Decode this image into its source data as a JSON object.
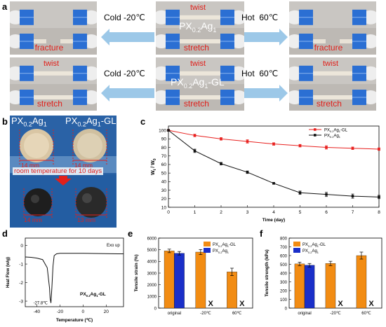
{
  "panels": {
    "a": {
      "letter": "a",
      "row1": {
        "left": {
          "top": "",
          "bottom": "fracture"
        },
        "center": {
          "top": "twist",
          "bottom": "stretch",
          "material": "PX",
          "material_sub": "0.2",
          "material_suffix": "Ag",
          "material_sub2": "1",
          "material_tail": ""
        },
        "right": {
          "top": "",
          "bottom": "fracture"
        },
        "arrow_left": "Cold -20℃",
        "arrow_right": "Hot  60℃"
      },
      "row2": {
        "left": {
          "top": "twist",
          "bottom": "stretch"
        },
        "center": {
          "top": "twist",
          "bottom": "stretch",
          "material": "PX",
          "material_sub": "0.2",
          "material_suffix": "Ag",
          "material_sub2": "1",
          "material_tail": "-GL"
        },
        "right": {
          "top": "twist",
          "bottom": "stretch"
        },
        "arrow_left": "Cold -20℃",
        "arrow_right": "Hot  60℃"
      }
    },
    "b": {
      "letter": "b",
      "label_left": {
        "main": "PX",
        "sub": "0.2",
        "mid": "Ag",
        "sub2": "1",
        "tail": ""
      },
      "label_right": {
        "main": "PX",
        "sub": "0.2",
        "mid": "Ag",
        "sub2": "1",
        "tail": "-GL"
      },
      "top_left_size": "14 mm",
      "top_right_size": "14 mm",
      "middle_text": "room temperature for 10 days",
      "bottom_left_size": "14 mm",
      "bottom_right_size": "13 mm"
    },
    "c": {
      "letter": "c"
    },
    "d": {
      "letter": "d"
    },
    "e": {
      "letter": "e"
    },
    "f": {
      "letter": "f"
    }
  },
  "colors": {
    "red_text": "#e0201b",
    "arrow_blue": "#9cc8e8",
    "series_gl": "#e8211f",
    "series_plain": "#111111",
    "bar_orange": "#f28c13",
    "bar_blue": "#1a2fc9",
    "x_mark": "#111111"
  },
  "chart_data": [
    {
      "id": "c",
      "type": "line",
      "xlabel": "Time (day)",
      "ylabel": "Wt / W0",
      "ylabel_main": "W",
      "ylabel_sub_t": "t",
      "ylabel_sep": " / W",
      "ylabel_sub_0": "0",
      "xlim": [
        0,
        8
      ],
      "ylim": [
        10,
        105
      ],
      "x_ticks": [
        0,
        1,
        2,
        3,
        4,
        5,
        6,
        7,
        8
      ],
      "y_ticks": [
        10,
        20,
        30,
        40,
        50,
        60,
        70,
        80,
        90,
        100
      ],
      "x": [
        0,
        1,
        2,
        3,
        4,
        5,
        6,
        7,
        8
      ],
      "series": [
        {
          "name": "PX0.2Ag1-GL",
          "name_main": "PX",
          "name_sub": "0.2",
          "name_mid": "Ag",
          "name_sub2": "1",
          "name_tail": "-GL",
          "marker": "square",
          "color": "#e8211f",
          "values": [
            100,
            94,
            90,
            87,
            84,
            82,
            80,
            79,
            78
          ],
          "errors": [
            1,
            1.5,
            1.5,
            2,
            1.5,
            1.5,
            2,
            1.5,
            1.5
          ]
        },
        {
          "name": "PX0.2Ag1",
          "name_main": "PX",
          "name_sub": "0.2",
          "name_mid": "Ag",
          "name_sub2": "1",
          "name_tail": "",
          "marker": "square",
          "color": "#111111",
          "values": [
            100,
            76,
            61,
            51,
            38,
            27,
            25,
            23,
            22
          ],
          "errors": [
            1,
            2,
            1.5,
            1.5,
            1,
            2,
            2.5,
            2.5,
            2
          ]
        }
      ],
      "legend": "top-right"
    },
    {
      "id": "d",
      "type": "line",
      "xlabel": "Temperature (℃)",
      "ylabel": "Heat Flow (w/g)",
      "annotation_exo": "Exo up",
      "annotation_peak": "-27.8℃",
      "series_label": {
        "main": "PX",
        "sub": "0.2",
        "mid": "Ag",
        "sub2": "1",
        "tail": "-GL"
      },
      "xlim": [
        -50,
        35
      ],
      "ylim": [
        -3.3,
        0.4
      ],
      "x_ticks": [
        -40,
        -20,
        0,
        20
      ],
      "y_ticks": [
        0,
        -1,
        -2,
        -3
      ],
      "x": [
        -50,
        -45,
        -40,
        -35,
        -31,
        -29,
        -28.5,
        -27.8,
        -27,
        -26,
        -25,
        -23,
        -20,
        -10,
        0,
        10,
        20,
        30,
        35
      ],
      "values": [
        -0.62,
        -0.64,
        -0.68,
        -0.76,
        -1.2,
        -2.3,
        -2.85,
        -3.1,
        -2.3,
        -1.1,
        -0.55,
        -0.45,
        -0.42,
        -0.42,
        -0.42,
        -0.43,
        -0.44,
        -0.45,
        -0.45
      ]
    },
    {
      "id": "e",
      "type": "bar",
      "ylabel": "Tensile strain (%)",
      "categories": [
        "original",
        "-20℃",
        "60℃"
      ],
      "ylim": [
        0,
        6000
      ],
      "y_ticks": [
        0,
        1000,
        2000,
        3000,
        4000,
        5000,
        6000
      ],
      "series": [
        {
          "name": "PX0.2Ag1-GL",
          "name_main": "PX",
          "name_sub": "0.2",
          "name_mid": "Ag",
          "name_sub2": "1",
          "name_tail": "-GL",
          "color": "#f28c13",
          "values": [
            4900,
            4800,
            3100
          ],
          "errors": [
            150,
            220,
            320
          ]
        },
        {
          "name": "PX0.2Ag1",
          "name_main": "PX",
          "name_sub": "0.2",
          "name_mid": "Ag",
          "name_sub2": "1",
          "name_tail": "",
          "color": "#1a2fc9",
          "values": [
            4700,
            null,
            null
          ],
          "errors": [
            150,
            null,
            null
          ]
        }
      ],
      "missing_mark": "X",
      "legend": "top-right"
    },
    {
      "id": "f",
      "type": "bar",
      "ylabel": "Tensile strength (kPa)",
      "categories": [
        "original",
        "-20℃",
        "60℃"
      ],
      "ylim": [
        0,
        800
      ],
      "y_ticks": [
        0,
        100,
        200,
        300,
        400,
        500,
        600,
        700,
        800
      ],
      "series": [
        {
          "name": "PX0.2Ag1-GL",
          "name_main": "PX",
          "name_sub": "0.2",
          "name_mid": "Ag",
          "name_sub2": "1",
          "name_tail": "-GL",
          "color": "#f28c13",
          "values": [
            505,
            510,
            600
          ],
          "errors": [
            20,
            25,
            40
          ]
        },
        {
          "name": "PX0.2Ag1",
          "name_main": "PX",
          "name_sub": "0.2",
          "name_mid": "Ag",
          "name_sub2": "1",
          "name_tail": "",
          "color": "#1a2fc9",
          "values": [
            490,
            null,
            null
          ],
          "errors": [
            20,
            null,
            null
          ]
        }
      ],
      "missing_mark": "X",
      "legend": "top-left"
    }
  ]
}
